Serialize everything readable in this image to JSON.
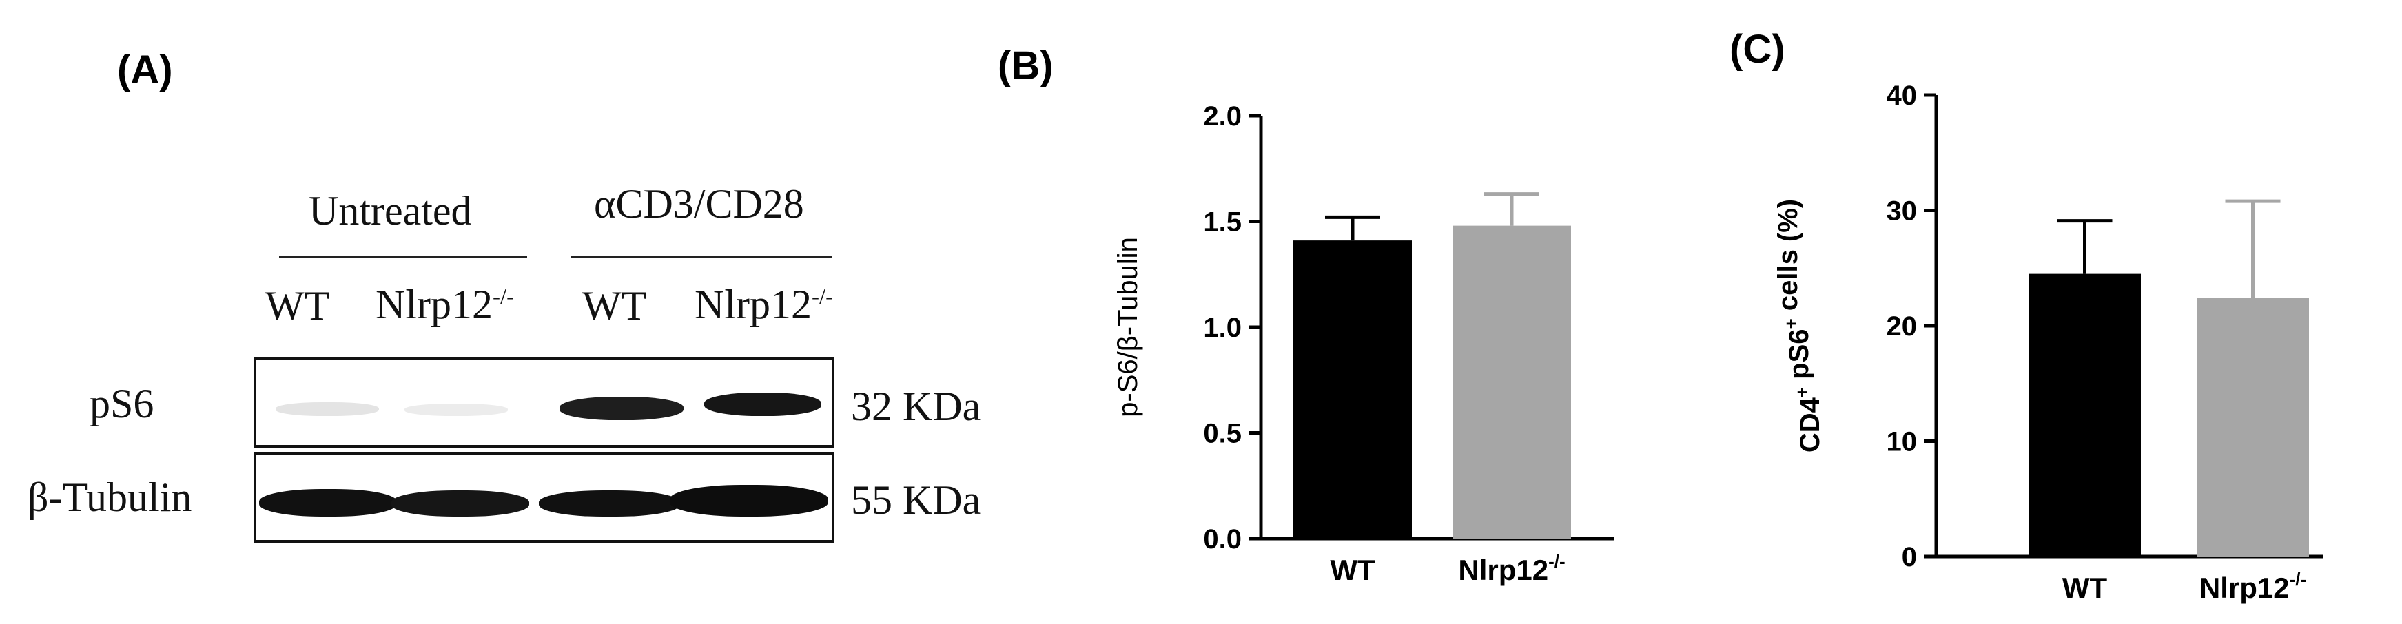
{
  "panels": {
    "a": {
      "letter": "(A)",
      "group_untreated": "Untreated",
      "group_stim": "αCD3/CD28",
      "lane_wt_1": "WT",
      "lane_ko_1": "Nlrp12",
      "lane_wt_2": "WT",
      "lane_ko_2": "Nlrp12",
      "ko_superscript": "-/-",
      "row_ps6": "pS6",
      "row_tubulin": "β-Tubulin",
      "size_ps6": "32 KDa",
      "size_tubulin": "55 KDa"
    },
    "b": {
      "letter": "(B)"
    },
    "c": {
      "letter": "(C)"
    }
  },
  "colors": {
    "wt": "#000000",
    "ko": "#a6a6a6",
    "axis": "#000000"
  },
  "chart_data": [
    {
      "type": "bar",
      "categories": [
        "WT",
        "Nlrp12"
      ],
      "category_superscripts": [
        "",
        "-/-"
      ],
      "values": [
        1.41,
        1.48
      ],
      "error": [
        0.11,
        0.15
      ],
      "ylabel": "p-S6/β-Tubulin",
      "ylim": [
        0,
        2.0
      ],
      "yticks": [
        "0.0",
        "0.5",
        "1.0",
        "1.5",
        "2.0"
      ],
      "ytick_values": [
        0,
        0.5,
        1.0,
        1.5,
        2.0
      ]
    },
    {
      "type": "bar",
      "categories": [
        "WT",
        "Nlrp12"
      ],
      "category_superscripts": [
        "",
        "-/-"
      ],
      "values": [
        24.5,
        22.4
      ],
      "error": [
        4.6,
        8.4
      ],
      "ylabel_parts": [
        "CD4",
        "+",
        " pS6",
        "+",
        " cells (%)"
      ],
      "ylim": [
        0,
        40
      ],
      "yticks": [
        "0",
        "10",
        "20",
        "30",
        "40"
      ],
      "ytick_values": [
        0,
        10,
        20,
        30,
        40
      ]
    }
  ]
}
